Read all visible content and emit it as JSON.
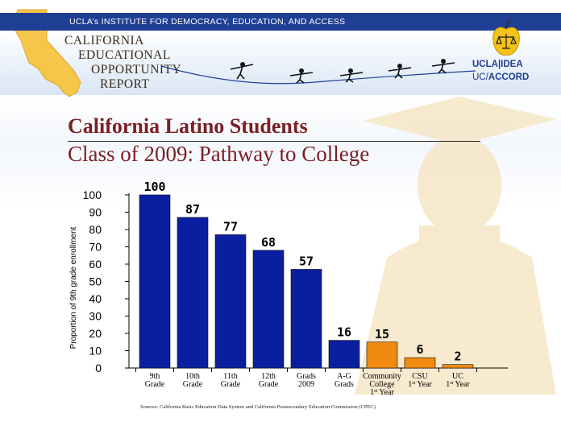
{
  "header": {
    "topbar_text": "UCLA’s INSTITUTE FOR DEMOCRACY, EDUCATION, AND ACCESS",
    "report_lines": [
      "CALIFORNIA",
      "EDUCATIONAL",
      "OPPORTUNITY",
      "REPORT"
    ],
    "logo_ucla": "UCLA|IDEA",
    "logo_uc_prefix": "UC/",
    "logo_uc_suffix": "ACCORD"
  },
  "titles": {
    "main": "California Latino Students",
    "sub": "Class of 2009: Pathway to College"
  },
  "source_note": "Sources: California Basic Education Data System and California Postsecondary Education Commission (CPEC)",
  "colors": {
    "topbar": "#1f3f95",
    "title": "#7a1f23",
    "bar_blue": "#0a1fa0",
    "bar_orange": "#f08a10",
    "california": "#f5c64a"
  },
  "chart_data": {
    "type": "bar",
    "title": "",
    "xlabel": "",
    "ylabel": "Proportion of 9th grade enrollment",
    "ylim": [
      0,
      100
    ],
    "yticks": [
      "0",
      "10",
      "20",
      "30",
      "40",
      "50",
      "60",
      "70",
      "80",
      "90",
      "100"
    ],
    "grid": false,
    "categories": [
      [
        "9th",
        "Grade"
      ],
      [
        "10th",
        "Grade"
      ],
      [
        "11th",
        "Grade"
      ],
      [
        "12th",
        "Grade"
      ],
      [
        "Grads",
        "2009"
      ],
      [
        "A-G",
        "Grads"
      ],
      [
        "Community",
        "College",
        "1st Year"
      ],
      [
        "CSU",
        "1st Year"
      ],
      [
        "UC",
        "1st Year"
      ]
    ],
    "values": [
      100,
      87,
      77,
      68,
      57,
      16,
      15,
      6,
      2
    ],
    "value_labels": [
      "100",
      "87",
      "77",
      "68",
      "57",
      "16",
      "15",
      "6",
      "2"
    ],
    "bar_colors": [
      "#0a1fa0",
      "#0a1fa0",
      "#0a1fa0",
      "#0a1fa0",
      "#0a1fa0",
      "#0a1fa0",
      "#f08a10",
      "#f08a10",
      "#f08a10"
    ]
  }
}
